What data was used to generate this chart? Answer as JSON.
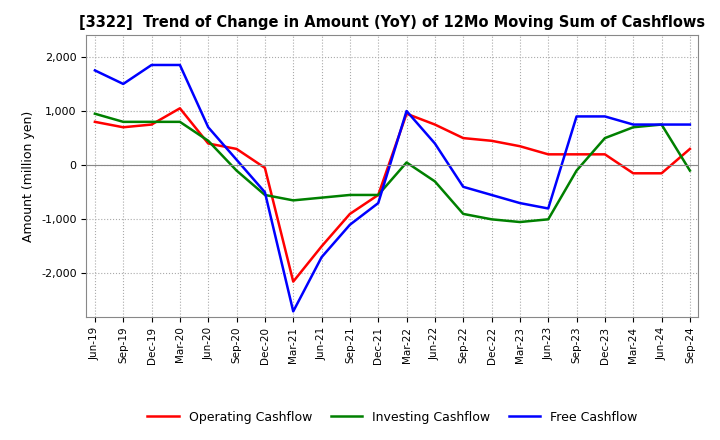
{
  "title": "[3322]  Trend of Change in Amount (YoY) of 12Mo Moving Sum of Cashflows",
  "ylabel": "Amount (million yen)",
  "ylim": [
    -2800,
    2400
  ],
  "yticks": [
    -2000,
    -1000,
    0,
    1000,
    2000
  ],
  "background_color": "#ffffff",
  "grid_color": "#aaaaaa",
  "x_labels": [
    "Jun-19",
    "Sep-19",
    "Dec-19",
    "Mar-20",
    "Jun-20",
    "Sep-20",
    "Dec-20",
    "Mar-21",
    "Jun-21",
    "Sep-21",
    "Dec-21",
    "Mar-22",
    "Jun-22",
    "Sep-22",
    "Dec-22",
    "Mar-23",
    "Jun-23",
    "Sep-23",
    "Dec-23",
    "Mar-24",
    "Jun-24",
    "Sep-24"
  ],
  "operating": [
    800,
    700,
    750,
    1050,
    400,
    300,
    -50,
    -2150,
    -1500,
    -900,
    -550,
    950,
    750,
    500,
    450,
    350,
    200,
    200,
    200,
    -150,
    -150,
    300
  ],
  "investing": [
    950,
    800,
    800,
    800,
    450,
    -100,
    -550,
    -650,
    -600,
    -550,
    -550,
    50,
    -300,
    -900,
    -1000,
    -1050,
    -1000,
    -100,
    500,
    700,
    750,
    -100
  ],
  "free": [
    1750,
    1500,
    1850,
    1850,
    700,
    100,
    -500,
    -2700,
    -1700,
    -1100,
    -700,
    1000,
    400,
    -400,
    -550,
    -700,
    -800,
    900,
    900,
    750,
    750,
    750
  ],
  "op_color": "#ff0000",
  "inv_color": "#008000",
  "free_color": "#0000ff",
  "line_width": 1.8
}
